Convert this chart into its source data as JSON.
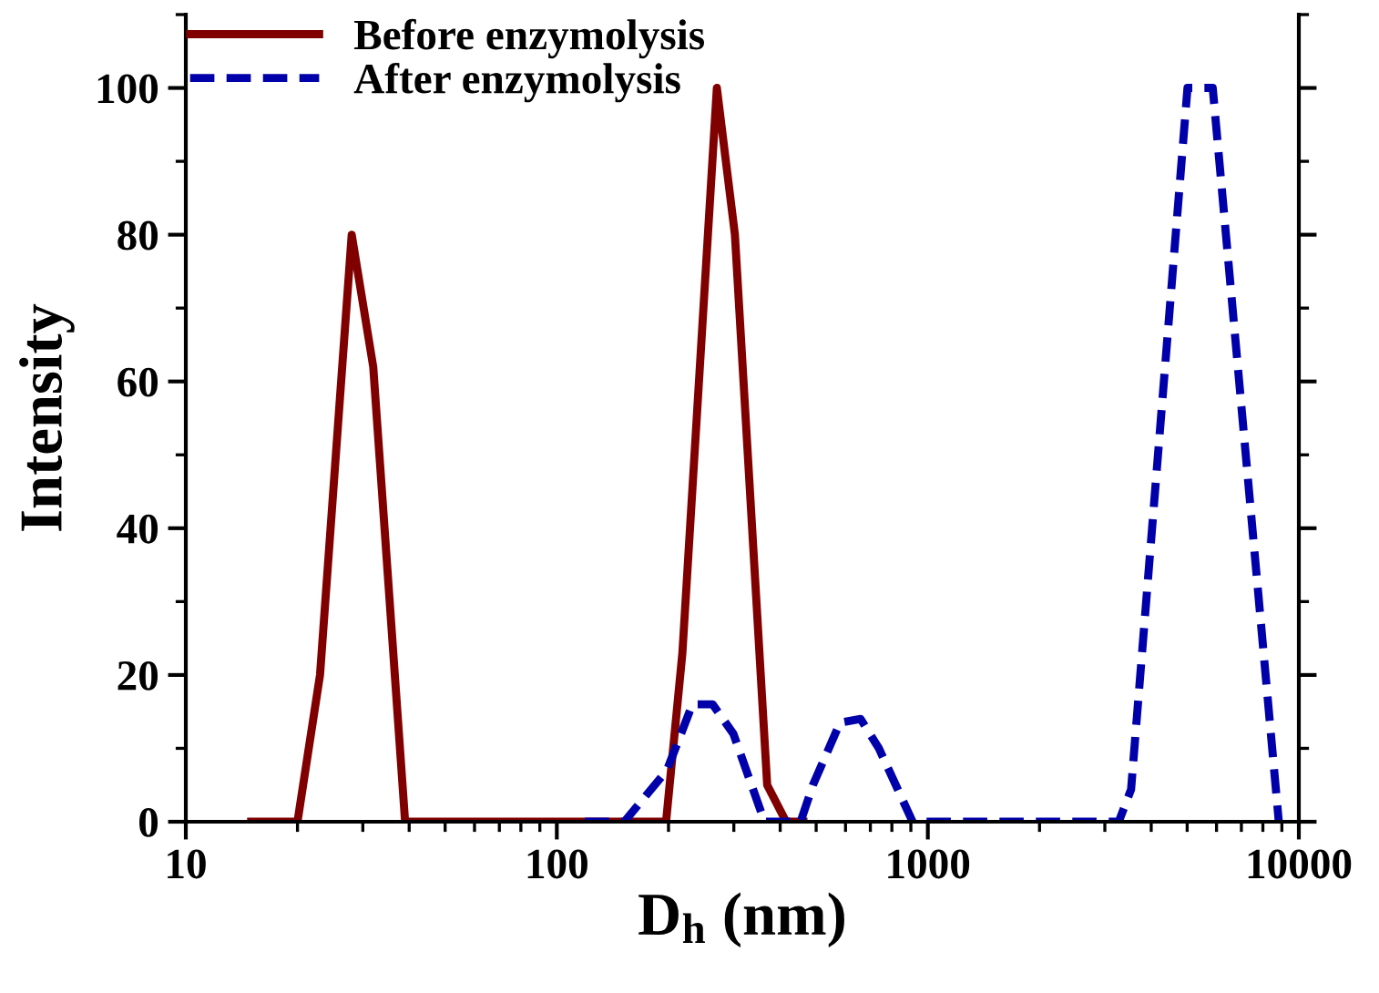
{
  "chart_data": {
    "type": "line",
    "xlabel": "D$_{h}$ (nm)",
    "ylabel": "Intensity",
    "log": "x",
    "xlim": [
      10,
      10000
    ],
    "xticks": [
      10,
      100,
      1000,
      10000
    ],
    "ylim": [
      0,
      110
    ],
    "yticks": [
      0,
      20,
      40,
      60,
      80,
      100
    ],
    "grid": false,
    "legend": "top left",
    "series": [
      {
        "name": "Before enzymolysis",
        "color": "#800000",
        "line_style": "solid",
        "x": [
          15,
          20,
          23,
          28,
          32,
          39,
          197,
          218,
          270,
          302,
          369,
          415,
          462
        ],
        "values": [
          0,
          0,
          20,
          80,
          62,
          0,
          0,
          23,
          100,
          80,
          5,
          0,
          0
        ]
      },
      {
        "name": "After enzymolysis",
        "color": "#0000aa",
        "line_style": "dashed",
        "x": [
          119,
          152,
          198,
          232,
          263,
          299,
          363,
          375,
          454,
          490,
          580,
          659,
          738,
          910,
          3270,
          3530,
          5010,
          5860,
          8830
        ],
        "values": [
          0,
          0,
          7,
          16,
          16,
          12,
          0,
          0,
          0,
          5,
          13.5,
          14,
          10,
          0,
          0,
          4.4,
          100,
          100,
          0
        ]
      }
    ]
  }
}
